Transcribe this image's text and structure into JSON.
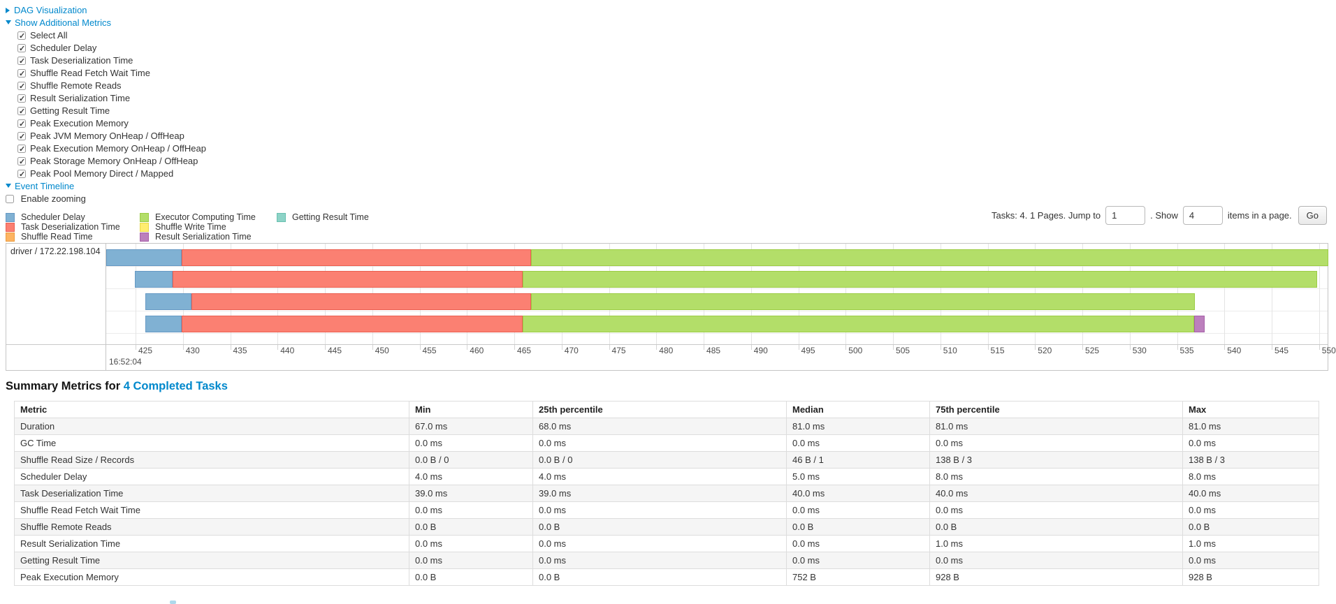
{
  "toggles": {
    "dag": "DAG Visualization",
    "metrics": "Show Additional Metrics",
    "timeline": "Event Timeline"
  },
  "metric_checkboxes": [
    "Select All",
    "Scheduler Delay",
    "Task Deserialization Time",
    "Shuffle Read Fetch Wait Time",
    "Shuffle Remote Reads",
    "Result Serialization Time",
    "Getting Result Time",
    "Peak Execution Memory",
    "Peak JVM Memory OnHeap / OffHeap",
    "Peak Execution Memory OnHeap / OffHeap",
    "Peak Storage Memory OnHeap / OffHeap",
    "Peak Pool Memory Direct / Mapped"
  ],
  "enable_zooming_label": "Enable zooming",
  "link_color": "#0088cc",
  "segment_colors": {
    "scheduler_delay": {
      "fill": "#80B1D3",
      "border": "#6699c4"
    },
    "task_deserialization": {
      "fill": "#FB8072",
      "border": "#ea5f50"
    },
    "shuffle_read": {
      "fill": "#FDB462",
      "border": "#eb9b3e"
    },
    "executor_computing": {
      "fill": "#B3DE69",
      "border": "#9ccc45"
    },
    "shuffle_write": {
      "fill": "#FFED6F",
      "border": "#e8d84a"
    },
    "result_serialization": {
      "fill": "#BC80BD",
      "border": "#a660a8"
    },
    "getting_result": {
      "fill": "#8DD3C7",
      "border": "#69c0b0"
    }
  },
  "legend": {
    "columns": [
      [
        {
          "type": "scheduler_delay",
          "label": "Scheduler Delay"
        },
        {
          "type": "task_deserialization",
          "label": "Task Deserialization Time"
        },
        {
          "type": "shuffle_read",
          "label": "Shuffle Read Time"
        }
      ],
      [
        {
          "type": "executor_computing",
          "label": "Executor Computing Time"
        },
        {
          "type": "shuffle_write",
          "label": "Shuffle Write Time"
        },
        {
          "type": "result_serialization",
          "label": "Result Serialization Time"
        }
      ],
      [
        {
          "type": "getting_result",
          "label": "Getting Result Time"
        }
      ]
    ]
  },
  "pagination": {
    "tasks_text": "Tasks: 4. 1 Pages. Jump to",
    "jump_value": "1",
    "show_text": ". Show",
    "show_value": "4",
    "items_text": "items in a page.",
    "go_label": "Go"
  },
  "timeline": {
    "row_label": "driver / 172.22.198.104",
    "axis": {
      "view_min": 421.9,
      "view_max": 550.9,
      "ticks": [
        425,
        430,
        435,
        440,
        445,
        450,
        455,
        460,
        465,
        470,
        475,
        480,
        485,
        490,
        495,
        500,
        505,
        510,
        515,
        520,
        525,
        530,
        535,
        540,
        545,
        550
      ],
      "major_time_label": "16:52:04"
    },
    "tasks": [
      {
        "segments": [
          {
            "type": "scheduler_delay",
            "from": 421.9,
            "to": 429.9
          },
          {
            "type": "task_deserialization",
            "from": 429.9,
            "to": 466.8
          },
          {
            "type": "executor_computing",
            "from": 466.8,
            "to": 551.0
          }
        ]
      },
      {
        "segments": [
          {
            "type": "scheduler_delay",
            "from": 424.9,
            "to": 428.9
          },
          {
            "type": "task_deserialization",
            "from": 428.9,
            "to": 465.9
          },
          {
            "type": "executor_computing",
            "from": 465.9,
            "to": 549.8
          }
        ]
      },
      {
        "segments": [
          {
            "type": "scheduler_delay",
            "from": 426.0,
            "to": 430.9
          },
          {
            "type": "task_deserialization",
            "from": 430.9,
            "to": 466.8
          },
          {
            "type": "executor_computing",
            "from": 466.8,
            "to": 536.9
          }
        ]
      },
      {
        "segments": [
          {
            "type": "scheduler_delay",
            "from": 426.0,
            "to": 429.9
          },
          {
            "type": "task_deserialization",
            "from": 429.9,
            "to": 465.9
          },
          {
            "type": "executor_computing",
            "from": 465.9,
            "to": 536.8
          },
          {
            "type": "result_serialization",
            "from": 536.8,
            "to": 537.9
          }
        ]
      }
    ]
  },
  "summary": {
    "title_prefix": "Summary Metrics for",
    "title_link": "4 Completed Tasks"
  },
  "table": {
    "headers": [
      "Metric",
      "Min",
      "25th percentile",
      "Median",
      "75th percentile",
      "Max"
    ],
    "rows": [
      {
        "metric": "Duration",
        "values": [
          "67.0 ms",
          "68.0 ms",
          "81.0 ms",
          "81.0 ms",
          "81.0 ms"
        ]
      },
      {
        "metric": "GC Time",
        "values": [
          "0.0 ms",
          "0.0 ms",
          "0.0 ms",
          "0.0 ms",
          "0.0 ms"
        ]
      },
      {
        "metric": "Shuffle Read Size / Records",
        "values": [
          "0.0 B / 0",
          "0.0 B / 0",
          "46 B / 1",
          "138 B / 3",
          "138 B / 3"
        ]
      },
      {
        "metric": "Scheduler Delay",
        "values": [
          "4.0 ms",
          "4.0 ms",
          "5.0 ms",
          "8.0 ms",
          "8.0 ms"
        ]
      },
      {
        "metric": "Task Deserialization Time",
        "values": [
          "39.0 ms",
          "39.0 ms",
          "40.0 ms",
          "40.0 ms",
          "40.0 ms"
        ]
      },
      {
        "metric": "Shuffle Read Fetch Wait Time",
        "values": [
          "0.0 ms",
          "0.0 ms",
          "0.0 ms",
          "0.0 ms",
          "0.0 ms"
        ]
      },
      {
        "metric": "Shuffle Remote Reads",
        "values": [
          "0.0 B",
          "0.0 B",
          "0.0 B",
          "0.0 B",
          "0.0 B"
        ]
      },
      {
        "metric": "Result Serialization Time",
        "values": [
          "0.0 ms",
          "0.0 ms",
          "0.0 ms",
          "1.0 ms",
          "1.0 ms"
        ]
      },
      {
        "metric": "Getting Result Time",
        "values": [
          "0.0 ms",
          "0.0 ms",
          "0.0 ms",
          "0.0 ms",
          "0.0 ms"
        ]
      },
      {
        "metric": "Peak Execution Memory",
        "values": [
          "0.0 B",
          "0.0 B",
          "752 B",
          "928 B",
          "928 B"
        ]
      }
    ]
  }
}
